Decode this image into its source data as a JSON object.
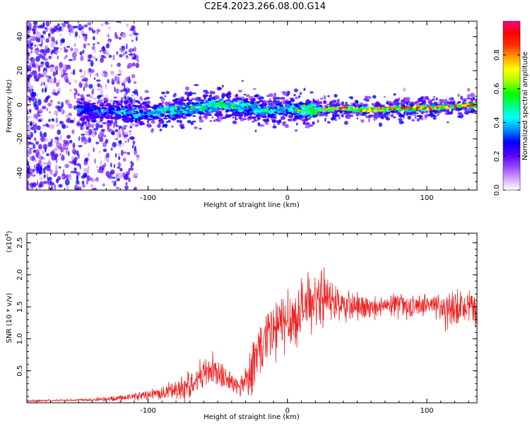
{
  "page": {
    "title": "C2E4.2023.266.08.00.G14"
  },
  "chart_data": [
    {
      "type": "heatmap",
      "title": "C2E4.2023.266.08.00.G14",
      "xlabel": "Height of straight line (km)",
      "ylabel": "Frequency (Hz)",
      "xlim": [
        -187,
        136
      ],
      "ylim": [
        -50,
        49
      ],
      "xticks": [
        "-100",
        "0",
        "100"
      ],
      "yticks": [
        "-40",
        "-20",
        "0",
        "20",
        "40"
      ],
      "colorbar": {
        "label": "Normalized spectral amplitude",
        "range": [
          0,
          1
        ],
        "ticks": [
          "0.0",
          "0.2",
          "0.4",
          "0.6",
          "0.8"
        ],
        "colors": [
          "#ffffff",
          "#d0a0ff",
          "#9040ff",
          "#5000ff",
          "#0000ff",
          "#0090ff",
          "#00ffff",
          "#00ff80",
          "#00ff00",
          "#a0ff00",
          "#ffff00",
          "#ffa000",
          "#ff3000",
          "#ff0000",
          "#ff0080"
        ]
      },
      "ridge": {
        "x": [
          -187,
          -170,
          -150,
          -130,
          -110,
          -90,
          -70,
          -50,
          -30,
          -10,
          0,
          10,
          20,
          40,
          60,
          80,
          100,
          120,
          136
        ],
        "freq_center": [
          0,
          -3,
          -3,
          -4,
          -5,
          -4,
          -2,
          0,
          -1,
          -4,
          -2,
          -3,
          -3,
          -2,
          -3,
          -2,
          -2,
          -1,
          0
        ],
        "peak_amplitude": [
          0.2,
          0.25,
          0.35,
          0.4,
          0.45,
          0.5,
          0.5,
          0.55,
          0.5,
          0.45,
          0.5,
          0.6,
          0.75,
          0.85,
          0.9,
          0.9,
          0.9,
          0.9,
          0.85
        ]
      }
    },
    {
      "type": "line",
      "xlabel": "Height of straight line (km)",
      "ylabel": "SNR (10 * v/v)",
      "yscale_label": "(x10",
      "yscale_exp": "4",
      "yscale_suffix": ")",
      "xlim": [
        -187,
        136
      ],
      "ylim": [
        0,
        2.65
      ],
      "xticks": [
        "-100",
        "0",
        "100"
      ],
      "yticks": [
        "0.5",
        "1.0",
        "1.5",
        "2.0",
        "2.5"
      ],
      "color": "#ee2222",
      "series": [
        {
          "x": [
            -187,
            -160,
            -140,
            -125,
            -110,
            -100,
            -90,
            -80,
            -70,
            -60,
            -55,
            -50,
            -45,
            -40,
            -35,
            -30,
            -25,
            -20,
            -15,
            -10,
            -5,
            0,
            5,
            10,
            15,
            20,
            25,
            30,
            35,
            40,
            50,
            60,
            70,
            80,
            90,
            100,
            110,
            115,
            120,
            125,
            130,
            136
          ],
          "y": [
            0.03,
            0.04,
            0.05,
            0.06,
            0.1,
            0.12,
            0.15,
            0.2,
            0.3,
            0.45,
            0.55,
            0.45,
            0.4,
            0.3,
            0.25,
            0.35,
            0.6,
            0.8,
            1.0,
            1.1,
            1.2,
            1.3,
            1.35,
            1.45,
            1.55,
            1.6,
            1.65,
            1.6,
            1.55,
            1.5,
            1.5,
            1.45,
            1.5,
            1.55,
            1.5,
            1.55,
            1.5,
            1.4,
            1.45,
            1.5,
            1.45,
            1.5
          ],
          "amplitude": [
            0.02,
            0.02,
            0.03,
            0.05,
            0.07,
            0.1,
            0.12,
            0.2,
            0.25,
            0.3,
            0.35,
            0.3,
            0.25,
            0.2,
            0.2,
            0.3,
            0.55,
            0.6,
            0.65,
            0.7,
            0.6,
            0.6,
            0.55,
            0.55,
            0.55,
            0.5,
            0.5,
            0.4,
            0.35,
            0.3,
            0.25,
            0.2,
            0.2,
            0.2,
            0.2,
            0.2,
            0.3,
            0.4,
            0.35,
            0.3,
            0.3,
            0.35
          ]
        }
      ]
    }
  ]
}
